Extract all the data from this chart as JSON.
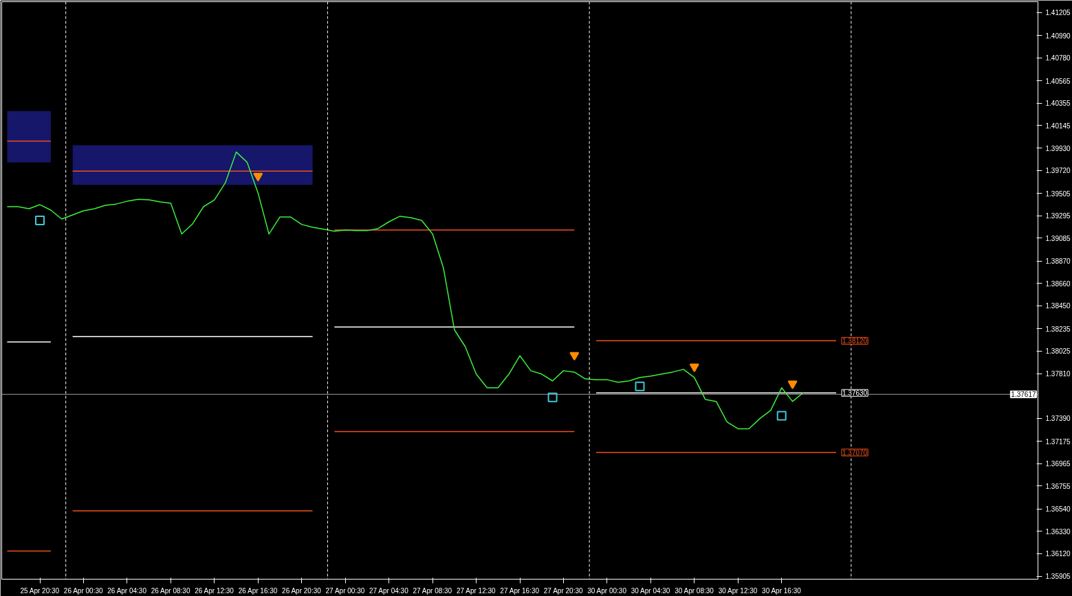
{
  "chart_data": {
    "type": "line",
    "categories": [
      null,
      null,
      null,
      "25 Apr 20:30",
      null,
      null,
      null,
      "26 Apr 00:30",
      null,
      null,
      null,
      "26 Apr 04:30",
      null,
      null,
      null,
      "26 Apr 08:30",
      null,
      null,
      null,
      "26 Apr 12:30",
      null,
      null,
      null,
      "26 Apr 16:30",
      null,
      null,
      null,
      "26 Apr 20:30",
      null,
      null,
      null,
      "27 Apr 00:30",
      null,
      null,
      null,
      "27 Apr 04:30",
      null,
      null,
      null,
      "27 Apr 08:30",
      null,
      null,
      null,
      "27 Apr 12:30",
      null,
      null,
      null,
      "27 Apr 16:30",
      null,
      null,
      null,
      "27 Apr 20:30",
      null,
      null,
      null,
      "30 Apr 00:30",
      null,
      null,
      null,
      "30 Apr 04:30",
      null,
      null,
      null,
      "30 Apr 08:30",
      null,
      null,
      null,
      "30 Apr 12:30",
      null,
      null,
      null,
      "30 Apr 16:30",
      null,
      null,
      null,
      null,
      null,
      null,
      null,
      null,
      null,
      null,
      null,
      null,
      null,
      null,
      null,
      null,
      null,
      null,
      null,
      null,
      null,
      null,
      null
    ],
    "ylim": [
      1.35879,
      1.41308
    ],
    "yticks": [
      {
        "value": 1.41205,
        "label": "1.41205"
      },
      {
        "value": 1.4099,
        "label": "1.40990"
      },
      {
        "value": 1.4078,
        "label": "1.40780"
      },
      {
        "value": 1.40565,
        "label": "1.40565"
      },
      {
        "value": 1.40355,
        "label": "1.40355"
      },
      {
        "value": 1.40145,
        "label": "1.40145"
      },
      {
        "value": 1.3993,
        "label": "1.39930"
      },
      {
        "value": 1.3972,
        "label": "1.39720"
      },
      {
        "value": 1.39505,
        "label": "1.39505"
      },
      {
        "value": 1.39295,
        "label": "1.39295"
      },
      {
        "value": 1.39085,
        "label": "1.39085"
      },
      {
        "value": 1.3887,
        "label": "1.38870"
      },
      {
        "value": 1.3866,
        "label": "1.38660"
      },
      {
        "value": 1.3845,
        "label": "1.38450"
      },
      {
        "value": 1.38235,
        "label": "1.38235"
      },
      {
        "value": 1.38025,
        "label": "1.38025"
      },
      {
        "value": 1.3781,
        "label": "1.37810"
      },
      {
        "value": 1.3739,
        "label": "1.37390"
      },
      {
        "value": 1.37175,
        "label": "1.37175"
      },
      {
        "value": 1.36965,
        "label": "1.36965"
      },
      {
        "value": 1.36755,
        "label": "1.36755"
      },
      {
        "value": 1.3654,
        "label": "1.36540"
      },
      {
        "value": 1.3633,
        "label": "1.36330"
      },
      {
        "value": 1.3612,
        "label": "1.36120"
      },
      {
        "value": 1.35905,
        "label": "1.35905"
      }
    ],
    "grid": false,
    "series": [
      {
        "color": "#3cf03c",
        "values": [
          1.39381,
          1.39381,
          1.39362,
          1.394,
          1.39349,
          1.39265,
          1.39304,
          1.39342,
          1.39362,
          1.39394,
          1.39406,
          1.39432,
          1.39451,
          1.39445,
          1.39426,
          1.39413,
          1.39124,
          1.3922,
          1.39381,
          1.39445,
          1.39606,
          1.39895,
          1.39798,
          1.39509,
          1.39124,
          1.39284,
          1.39284,
          1.39214,
          1.39188,
          1.39169,
          1.3915,
          1.39162,
          1.39156,
          1.39156,
          1.39175,
          1.39239,
          1.39291,
          1.39278,
          1.39252,
          1.39124,
          1.38803,
          1.38224,
          1.38064,
          1.37807,
          1.37678,
          1.37678,
          1.37807,
          1.3798,
          1.37839,
          1.37807,
          1.37743,
          1.37839,
          1.37826,
          1.37762,
          1.37755,
          1.37755,
          1.3773,
          1.37743,
          1.37775,
          1.37788,
          1.37807,
          1.37826,
          1.37852,
          1.37775,
          1.37569,
          1.3755,
          1.37357,
          1.37293,
          1.37293,
          1.37389,
          1.37466,
          1.37678,
          1.3755,
          1.37633,
          null,
          null,
          null,
          null,
          null,
          null,
          null,
          null,
          null,
          null,
          null,
          null,
          null,
          null,
          null,
          null,
          null,
          null,
          null,
          null,
          null
        ]
      },
      {
        "color": "#f0501e",
        "values": [
          1.39997,
          1.39997,
          1.39997,
          1.39997,
          1.39997,
          null,
          null,
          null,
          null,
          null,
          null,
          null,
          null,
          null,
          null,
          null,
          null,
          null,
          null,
          null,
          null,
          null,
          null,
          null,
          null,
          null,
          null,
          null,
          null,
          null,
          null,
          null,
          null,
          null,
          null,
          null,
          null,
          null,
          null,
          null,
          null,
          null,
          null,
          null,
          null,
          null,
          null,
          null,
          null,
          null,
          null,
          null,
          null,
          null,
          null,
          null,
          null,
          null,
          null,
          null,
          null,
          null,
          null,
          null,
          null,
          null,
          null,
          null,
          null,
          null,
          null,
          null,
          null,
          null,
          null,
          null,
          null,
          null,
          null,
          null,
          null,
          null,
          null,
          null,
          null,
          null,
          null,
          null,
          null,
          null,
          null,
          null,
          null,
          null,
          null
        ],
        "lower": [
          1.39798,
          1.39798,
          1.39798,
          1.39798,
          1.39798,
          null,
          null,
          null,
          null,
          null,
          null,
          null,
          null,
          null,
          null,
          null,
          null,
          null,
          null,
          null,
          null,
          null,
          null,
          null,
          null,
          null,
          null,
          null,
          null,
          null,
          null,
          null,
          null,
          null,
          null,
          null,
          null,
          null,
          null,
          null,
          null,
          null,
          null,
          null,
          null,
          null,
          null,
          null,
          null,
          null,
          null,
          null,
          null,
          null,
          null,
          null,
          null,
          null,
          null,
          null,
          null,
          null,
          null,
          null,
          null,
          null,
          null,
          null,
          null,
          null,
          null,
          null,
          null,
          null,
          null,
          null,
          null,
          null,
          null,
          null,
          null,
          null,
          null,
          null,
          null,
          null,
          null,
          null,
          null,
          null,
          null,
          null,
          null,
          null,
          null
        ],
        "upper": [
          1.4028,
          1.4028,
          1.4028,
          1.4028,
          1.4028,
          null,
          null,
          null,
          null,
          null,
          null,
          null,
          null,
          null,
          null,
          null,
          null,
          null,
          null,
          null,
          null,
          null,
          null,
          null,
          null,
          null,
          null,
          null,
          null,
          null,
          null,
          null,
          null,
          null,
          null,
          null,
          null,
          null,
          null,
          null,
          null,
          null,
          null,
          null,
          null,
          null,
          null,
          null,
          null,
          null,
          null,
          null,
          null,
          null,
          null,
          null,
          null,
          null,
          null,
          null,
          null,
          null,
          null,
          null,
          null,
          null,
          null,
          null,
          null,
          null,
          null,
          null,
          null,
          null,
          null,
          null,
          null,
          null,
          null,
          null,
          null,
          null,
          null,
          null,
          null,
          null,
          null,
          null,
          null,
          null,
          null,
          null,
          null,
          null,
          null
        ]
      },
      {
        "color": "#ffffff",
        "values": [
          1.38109,
          1.38109,
          1.38109,
          1.38109,
          1.38109,
          null,
          null,
          null,
          null,
          null,
          null,
          null,
          null,
          null,
          null,
          null,
          null,
          null,
          null,
          null,
          null,
          null,
          null,
          null,
          null,
          null,
          null,
          null,
          null,
          null,
          null,
          null,
          null,
          null,
          null,
          null,
          null,
          null,
          null,
          null,
          null,
          null,
          null,
          null,
          null,
          null,
          null,
          null,
          null,
          null,
          null,
          null,
          null,
          null,
          null,
          null,
          null,
          null,
          null,
          null,
          null,
          null,
          null,
          null,
          null,
          null,
          null,
          null,
          null,
          null,
          null,
          null,
          null,
          null,
          null,
          null,
          null,
          null,
          null,
          null,
          null,
          null,
          null,
          null,
          null,
          null,
          null,
          null,
          null,
          null,
          null,
          null,
          null,
          null,
          null
        ]
      },
      {
        "color": "#f0501e",
        "values": [
          1.36143,
          1.36143,
          1.36143,
          1.36143,
          1.36143,
          null,
          null,
          null,
          null,
          null,
          null,
          null,
          null,
          null,
          null,
          null,
          null,
          null,
          null,
          null,
          null,
          null,
          null,
          null,
          null,
          null,
          null,
          null,
          null,
          null,
          null,
          null,
          null,
          null,
          null,
          null,
          null,
          null,
          null,
          null,
          null,
          null,
          null,
          null,
          null,
          null,
          null,
          null,
          null,
          null,
          null,
          null,
          null,
          null,
          null,
          null,
          null,
          null,
          null,
          null,
          null,
          null,
          null,
          null,
          null,
          null,
          null,
          null,
          null,
          null,
          null,
          null,
          null,
          null,
          null,
          null,
          null,
          null,
          null,
          null,
          null,
          null,
          null,
          null,
          null,
          null,
          null,
          null,
          null,
          null,
          null,
          null,
          null,
          null,
          null
        ]
      },
      {
        "color": "#f0501e",
        "values": [
          null,
          null,
          null,
          null,
          null,
          null,
          1.39715,
          1.39715,
          1.39715,
          1.39715,
          1.39715,
          1.39715,
          1.39715,
          1.39715,
          1.39715,
          1.39715,
          1.39715,
          1.39715,
          1.39715,
          1.39715,
          1.39715,
          1.39715,
          1.39715,
          1.39715,
          1.39715,
          1.39715,
          1.39715,
          1.39715,
          1.39715,
          null,
          null,
          null,
          null,
          null,
          null,
          null,
          null,
          null,
          null,
          null,
          null,
          null,
          null,
          null,
          null,
          null,
          null,
          null,
          null,
          null,
          null,
          null,
          null,
          null,
          null,
          null,
          null,
          null,
          null,
          null,
          null,
          null,
          null,
          null,
          null,
          null,
          null,
          null,
          null,
          null,
          null,
          null,
          null,
          null,
          null,
          null,
          null,
          null,
          null,
          null,
          null,
          null,
          null,
          null,
          null,
          null,
          null,
          null,
          null,
          null,
          null,
          null,
          null,
          null,
          null
        ],
        "lower": [
          null,
          null,
          null,
          null,
          null,
          null,
          1.39586,
          1.39586,
          1.39586,
          1.39586,
          1.39586,
          1.39586,
          1.39586,
          1.39586,
          1.39586,
          1.39586,
          1.39586,
          1.39586,
          1.39586,
          1.39586,
          1.39586,
          1.39586,
          1.39586,
          1.39586,
          1.39586,
          1.39586,
          1.39586,
          1.39586,
          1.39586,
          null,
          null,
          null,
          null,
          null,
          null,
          null,
          null,
          null,
          null,
          null,
          null,
          null,
          null,
          null,
          null,
          null,
          null,
          null,
          null,
          null,
          null,
          null,
          null,
          null,
          null,
          null,
          null,
          null,
          null,
          null,
          null,
          null,
          null,
          null,
          null,
          null,
          null,
          null,
          null,
          null,
          null,
          null,
          null,
          null,
          null,
          null,
          null,
          null,
          null,
          null,
          null,
          null,
          null,
          null,
          null,
          null,
          null,
          null,
          null,
          null,
          null,
          null,
          null,
          null,
          null
        ],
        "upper": [
          null,
          null,
          null,
          null,
          null,
          null,
          1.39959,
          1.39959,
          1.39959,
          1.39959,
          1.39959,
          1.39959,
          1.39959,
          1.39959,
          1.39959,
          1.39959,
          1.39959,
          1.39959,
          1.39959,
          1.39959,
          1.39959,
          1.39959,
          1.39959,
          1.39959,
          1.39959,
          1.39959,
          1.39959,
          1.39959,
          1.39959,
          null,
          null,
          null,
          null,
          null,
          null,
          null,
          null,
          null,
          null,
          null,
          null,
          null,
          null,
          null,
          null,
          null,
          null,
          null,
          null,
          null,
          null,
          null,
          null,
          null,
          null,
          null,
          null,
          null,
          null,
          null,
          null,
          null,
          null,
          null,
          null,
          null,
          null,
          null,
          null,
          null,
          null,
          null,
          null,
          null,
          null,
          null,
          null,
          null,
          null,
          null,
          null,
          null,
          null,
          null,
          null,
          null,
          null,
          null,
          null,
          null,
          null,
          null,
          null,
          null,
          null
        ]
      },
      {
        "color": "#ffffff",
        "values": [
          null,
          null,
          null,
          null,
          null,
          null,
          1.3816,
          1.3816,
          1.3816,
          1.3816,
          1.3816,
          1.3816,
          1.3816,
          1.3816,
          1.3816,
          1.3816,
          1.3816,
          1.3816,
          1.3816,
          1.3816,
          1.3816,
          1.3816,
          1.3816,
          1.3816,
          1.3816,
          1.3816,
          1.3816,
          1.3816,
          1.3816,
          null,
          null,
          null,
          null,
          null,
          null,
          null,
          null,
          null,
          null,
          null,
          null,
          null,
          null,
          null,
          null,
          null,
          null,
          null,
          null,
          null,
          null,
          null,
          null,
          null,
          null,
          null,
          null,
          null,
          null,
          null,
          null,
          null,
          null,
          null,
          null,
          null,
          null,
          null,
          null,
          null,
          null,
          null,
          null,
          null,
          null,
          null,
          null,
          null,
          null,
          null,
          null,
          null,
          null,
          null,
          null,
          null,
          null,
          null,
          null,
          null,
          null,
          null,
          null,
          null,
          null
        ]
      },
      {
        "color": "#f0501e",
        "values": [
          null,
          null,
          null,
          null,
          null,
          null,
          1.36522,
          1.36522,
          1.36522,
          1.36522,
          1.36522,
          1.36522,
          1.36522,
          1.36522,
          1.36522,
          1.36522,
          1.36522,
          1.36522,
          1.36522,
          1.36522,
          1.36522,
          1.36522,
          1.36522,
          1.36522,
          1.36522,
          1.36522,
          1.36522,
          1.36522,
          1.36522,
          null,
          null,
          null,
          null,
          null,
          null,
          null,
          null,
          null,
          null,
          null,
          null,
          null,
          null,
          null,
          null,
          null,
          null,
          null,
          null,
          null,
          null,
          null,
          null,
          null,
          null,
          null,
          null,
          null,
          null,
          null,
          null,
          null,
          null,
          null,
          null,
          null,
          null,
          null,
          null,
          null,
          null,
          null,
          null,
          null,
          null,
          null,
          null,
          null,
          null,
          null,
          null,
          null,
          null,
          null,
          null,
          null,
          null,
          null,
          null,
          null,
          null,
          null,
          null,
          null,
          null
        ]
      },
      {
        "color": "#f0501e",
        "values": [
          null,
          null,
          null,
          null,
          null,
          null,
          null,
          null,
          null,
          null,
          null,
          null,
          null,
          null,
          null,
          null,
          null,
          null,
          null,
          null,
          null,
          null,
          null,
          null,
          null,
          null,
          null,
          null,
          null,
          null,
          1.39162,
          1.39162,
          1.39162,
          1.39162,
          1.39162,
          1.39162,
          1.39162,
          1.39162,
          1.39162,
          1.39162,
          1.39162,
          1.39162,
          1.39162,
          1.39162,
          1.39162,
          1.39162,
          1.39162,
          1.39162,
          1.39162,
          1.39162,
          1.39162,
          1.39162,
          1.39162,
          null,
          null,
          null,
          null,
          null,
          null,
          null,
          null,
          null,
          null,
          null,
          null,
          null,
          null,
          null,
          null,
          null,
          null,
          null,
          null,
          null,
          null,
          null,
          null,
          null,
          null,
          null,
          null,
          null,
          null,
          null,
          null,
          null,
          null,
          null,
          null,
          null,
          null,
          null,
          null,
          null,
          null
        ]
      },
      {
        "color": "#ffffff",
        "values": [
          null,
          null,
          null,
          null,
          null,
          null,
          null,
          null,
          null,
          null,
          null,
          null,
          null,
          null,
          null,
          null,
          null,
          null,
          null,
          null,
          null,
          null,
          null,
          null,
          null,
          null,
          null,
          null,
          null,
          null,
          1.3825,
          1.3825,
          1.3825,
          1.3825,
          1.3825,
          1.3825,
          1.3825,
          1.3825,
          1.3825,
          1.3825,
          1.3825,
          1.3825,
          1.3825,
          1.3825,
          1.3825,
          1.3825,
          1.3825,
          1.3825,
          1.3825,
          1.3825,
          1.3825,
          1.3825,
          1.3825,
          null,
          null,
          null,
          null,
          null,
          null,
          null,
          null,
          null,
          null,
          null,
          null,
          null,
          null,
          null,
          null,
          null,
          null,
          null,
          null,
          null,
          null,
          null,
          null,
          null,
          null,
          null,
          null,
          null,
          null,
          null,
          null,
          null,
          null,
          null,
          null,
          null,
          null,
          null,
          null,
          null,
          null
        ]
      },
      {
        "color": "#f0501e",
        "values": [
          null,
          null,
          null,
          null,
          null,
          null,
          null,
          null,
          null,
          null,
          null,
          null,
          null,
          null,
          null,
          null,
          null,
          null,
          null,
          null,
          null,
          null,
          null,
          null,
          null,
          null,
          null,
          null,
          null,
          null,
          1.37267,
          1.37267,
          1.37267,
          1.37267,
          1.37267,
          1.37267,
          1.37267,
          1.37267,
          1.37267,
          1.37267,
          1.37267,
          1.37267,
          1.37267,
          1.37267,
          1.37267,
          1.37267,
          1.37267,
          1.37267,
          1.37267,
          1.37267,
          1.37267,
          1.37267,
          1.37267,
          null,
          null,
          null,
          null,
          null,
          null,
          null,
          null,
          null,
          null,
          null,
          null,
          null,
          null,
          null,
          null,
          null,
          null,
          null,
          null,
          null,
          null,
          null,
          null,
          null,
          null,
          null,
          null,
          null,
          null,
          null,
          null,
          null,
          null,
          null,
          null,
          null,
          null,
          null,
          null,
          null,
          null
        ]
      },
      {
        "color": "#f0501e",
        "values": [
          null,
          null,
          null,
          null,
          null,
          null,
          null,
          null,
          null,
          null,
          null,
          null,
          null,
          null,
          null,
          null,
          null,
          null,
          null,
          null,
          null,
          null,
          null,
          null,
          null,
          null,
          null,
          null,
          null,
          null,
          null,
          null,
          null,
          null,
          null,
          null,
          null,
          null,
          null,
          null,
          null,
          null,
          null,
          null,
          null,
          null,
          null,
          null,
          null,
          null,
          null,
          null,
          null,
          null,
          1.3812,
          1.3812,
          1.3812,
          1.3812,
          1.3812,
          1.3812,
          1.3812,
          1.3812,
          1.3812,
          1.3812,
          1.3812,
          1.3812,
          1.3812,
          1.3812,
          1.3812,
          1.3812,
          1.3812,
          1.3812,
          1.3812,
          1.3812,
          1.3812,
          1.3812,
          1.3812,
          null,
          null,
          null,
          null,
          null,
          null,
          null,
          null,
          null,
          null,
          null,
          null,
          null,
          null,
          null,
          null,
          null,
          null
        ],
        "value_labels": [
          null,
          null,
          null,
          null,
          null,
          null,
          null,
          null,
          null,
          null,
          null,
          null,
          null,
          null,
          null,
          null,
          null,
          null,
          null,
          null,
          null,
          null,
          null,
          null,
          null,
          null,
          null,
          null,
          null,
          null,
          null,
          null,
          null,
          null,
          null,
          null,
          null,
          null,
          null,
          null,
          null,
          null,
          null,
          null,
          null,
          null,
          null,
          null,
          null,
          null,
          null,
          null,
          null,
          null,
          null,
          null,
          null,
          null,
          null,
          null,
          null,
          null,
          null,
          null,
          null,
          null,
          null,
          null,
          null,
          null,
          null,
          null,
          null,
          null,
          null,
          null,
          "1.38120",
          null,
          null,
          null,
          null,
          null,
          null,
          null,
          null,
          null,
          null,
          null,
          null,
          null,
          null,
          null,
          null,
          null,
          null
        ]
      },
      {
        "color": "#ffffff",
        "values": [
          null,
          null,
          null,
          null,
          null,
          null,
          null,
          null,
          null,
          null,
          null,
          null,
          null,
          null,
          null,
          null,
          null,
          null,
          null,
          null,
          null,
          null,
          null,
          null,
          null,
          null,
          null,
          null,
          null,
          null,
          null,
          null,
          null,
          null,
          null,
          null,
          null,
          null,
          null,
          null,
          null,
          null,
          null,
          null,
          null,
          null,
          null,
          null,
          null,
          null,
          null,
          null,
          null,
          null,
          1.3763,
          1.3763,
          1.3763,
          1.3763,
          1.3763,
          1.3763,
          1.3763,
          1.3763,
          1.3763,
          1.3763,
          1.3763,
          1.3763,
          1.3763,
          1.3763,
          1.3763,
          1.3763,
          1.3763,
          1.3763,
          1.3763,
          1.3763,
          1.3763,
          1.3763,
          1.3763,
          null,
          null,
          null,
          null,
          null,
          null,
          null,
          null,
          null,
          null,
          null,
          null,
          null,
          null,
          null,
          null,
          null,
          null
        ],
        "value_labels": [
          null,
          null,
          null,
          null,
          null,
          null,
          null,
          null,
          null,
          null,
          null,
          null,
          null,
          null,
          null,
          null,
          null,
          null,
          null,
          null,
          null,
          null,
          null,
          null,
          null,
          null,
          null,
          null,
          null,
          null,
          null,
          null,
          null,
          null,
          null,
          null,
          null,
          null,
          null,
          null,
          null,
          null,
          null,
          null,
          null,
          null,
          null,
          null,
          null,
          null,
          null,
          null,
          null,
          null,
          null,
          null,
          null,
          null,
          null,
          null,
          null,
          null,
          null,
          null,
          null,
          null,
          null,
          null,
          null,
          null,
          null,
          null,
          null,
          null,
          null,
          null,
          "1.37630",
          null,
          null,
          null,
          null,
          null,
          null,
          null,
          null,
          null,
          null,
          null,
          null,
          null,
          null,
          null,
          null,
          null,
          null
        ]
      },
      {
        "color": "#f0501e",
        "values": [
          null,
          null,
          null,
          null,
          null,
          null,
          null,
          null,
          null,
          null,
          null,
          null,
          null,
          null,
          null,
          null,
          null,
          null,
          null,
          null,
          null,
          null,
          null,
          null,
          null,
          null,
          null,
          null,
          null,
          null,
          null,
          null,
          null,
          null,
          null,
          null,
          null,
          null,
          null,
          null,
          null,
          null,
          null,
          null,
          null,
          null,
          null,
          null,
          null,
          null,
          null,
          null,
          null,
          null,
          1.3707,
          1.3707,
          1.3707,
          1.3707,
          1.3707,
          1.3707,
          1.3707,
          1.3707,
          1.3707,
          1.3707,
          1.3707,
          1.3707,
          1.3707,
          1.3707,
          1.3707,
          1.3707,
          1.3707,
          1.3707,
          1.3707,
          1.3707,
          1.3707,
          1.3707,
          1.3707,
          null,
          null,
          null,
          null,
          null,
          null,
          null,
          null,
          null,
          null,
          null,
          null,
          null,
          null,
          null,
          null,
          null,
          null
        ],
        "value_labels": [
          null,
          null,
          null,
          null,
          null,
          null,
          null,
          null,
          null,
          null,
          null,
          null,
          null,
          null,
          null,
          null,
          null,
          null,
          null,
          null,
          null,
          null,
          null,
          null,
          null,
          null,
          null,
          null,
          null,
          null,
          null,
          null,
          null,
          null,
          null,
          null,
          null,
          null,
          null,
          null,
          null,
          null,
          null,
          null,
          null,
          null,
          null,
          null,
          null,
          null,
          null,
          null,
          null,
          null,
          null,
          null,
          null,
          null,
          null,
          null,
          null,
          null,
          null,
          null,
          null,
          null,
          null,
          null,
          null,
          null,
          null,
          null,
          null,
          null,
          null,
          null,
          "1.37070",
          null,
          null,
          null,
          null,
          null,
          null,
          null,
          null,
          null,
          null,
          null,
          null,
          null,
          null,
          null,
          null,
          null,
          null
        ]
      },
      {
        "type": "scatter",
        "marker": "triangle",
        "color": "#ff8c00",
        "values": [
          null,
          null,
          null,
          null,
          null,
          null,
          null,
          null,
          null,
          null,
          null,
          null,
          null,
          null,
          null,
          null,
          null,
          null,
          null,
          null,
          null,
          null,
          null,
          1.3967,
          null,
          null,
          null,
          null,
          null,
          null,
          null,
          null,
          null,
          null,
          null,
          null,
          null,
          null,
          null,
          null,
          null,
          null,
          null,
          null,
          null,
          null,
          null,
          null,
          null,
          null,
          null,
          null,
          1.37986,
          null,
          null,
          null,
          null,
          null,
          null,
          null,
          null,
          null,
          null,
          1.37877,
          null,
          null,
          null,
          null,
          null,
          null,
          null,
          null,
          1.37717,
          null,
          null,
          null,
          null,
          null,
          null,
          null,
          null,
          null,
          null,
          null,
          null,
          null,
          null,
          null,
          null,
          null,
          null,
          null,
          null,
          null,
          null
        ]
      },
      {
        "type": "scatter",
        "marker": "square",
        "color": "#40c8d8",
        "values": [
          null,
          null,
          null,
          1.39252,
          null,
          null,
          null,
          null,
          null,
          null,
          null,
          null,
          null,
          null,
          null,
          null,
          null,
          null,
          null,
          null,
          null,
          null,
          null,
          null,
          null,
          null,
          null,
          null,
          null,
          null,
          null,
          null,
          null,
          null,
          null,
          null,
          null,
          null,
          null,
          null,
          null,
          null,
          null,
          null,
          null,
          null,
          null,
          null,
          null,
          null,
          1.37588,
          null,
          null,
          null,
          null,
          null,
          null,
          null,
          1.37691,
          null,
          null,
          null,
          null,
          null,
          null,
          null,
          null,
          null,
          null,
          null,
          null,
          1.37415,
          null,
          null,
          null,
          null,
          null,
          null,
          null,
          null,
          null,
          null,
          null,
          null,
          null,
          null,
          null,
          null,
          null,
          null,
          null,
          null,
          null,
          null,
          null
        ]
      }
    ],
    "ref_lines": [
      {
        "axis": "y",
        "value": 1.37617,
        "label": "1.37617",
        "color": "#a0a0a0",
        "line_style": "solid"
      }
    ]
  }
}
